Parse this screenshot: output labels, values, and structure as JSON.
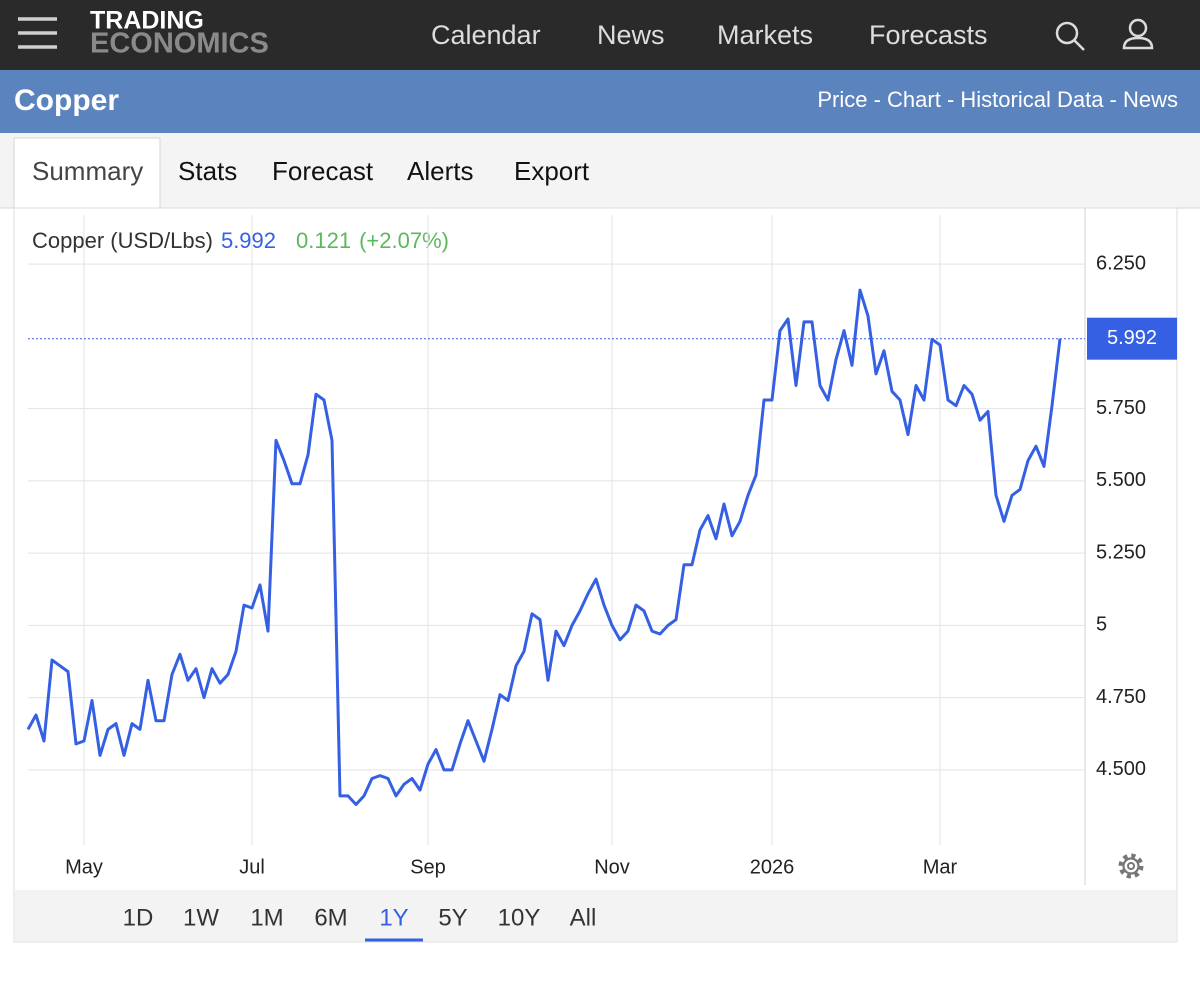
{
  "header": {
    "logo_top": "TRADING",
    "logo_bottom": "ECONOMICS",
    "nav": [
      "Calendar",
      "News",
      "Markets",
      "Forecasts"
    ]
  },
  "title_bar": {
    "title": "Copper",
    "links": "Price - Chart - Historical Data - News"
  },
  "tabs": {
    "items": [
      "Summary",
      "Stats",
      "Forecast",
      "Alerts",
      "Export"
    ],
    "selected": "Summary"
  },
  "legend": {
    "name": "Copper (USD/Lbs)",
    "change": "0.121",
    "change_pct": "(+2.07%)"
  },
  "ranges": {
    "items": [
      "1D",
      "1W",
      "1M",
      "6M",
      "1Y",
      "5Y",
      "10Y",
      "All"
    ],
    "selected": "1Y"
  },
  "chart_data": {
    "type": "line",
    "categories": [
      null,
      null,
      null,
      null,
      null,
      null,
      null,
      "May",
      null,
      null,
      null,
      null,
      null,
      null,
      null,
      null,
      null,
      null,
      null,
      null,
      null,
      null,
      null,
      null,
      null,
      null,
      null,
      null,
      "Jul",
      null,
      null,
      null,
      null,
      null,
      null,
      null,
      null,
      null,
      null,
      null,
      null,
      null,
      null,
      null,
      null,
      null,
      null,
      null,
      null,
      null,
      "Sep",
      null,
      null,
      null,
      null,
      null,
      null,
      null,
      null,
      null,
      null,
      null,
      null,
      null,
      null,
      null,
      null,
      null,
      null,
      null,
      null,
      null,
      null,
      "Nov",
      null,
      null,
      null,
      null,
      null,
      null,
      null,
      null,
      null,
      null,
      null,
      null,
      null,
      null,
      null,
      null,
      null,
      null,
      null,
      "2026",
      null,
      null,
      null,
      null,
      null,
      null,
      null,
      null,
      null,
      null,
      null,
      null,
      null,
      null,
      null,
      null,
      null,
      null,
      null,
      null,
      "Mar",
      null,
      null,
      null,
      null,
      null,
      null,
      null,
      null,
      null,
      null,
      null,
      null,
      null,
      null,
      null
    ],
    "series": [
      {
        "name": "Copper",
        "color": "#3560e3",
        "values": [
          4.64,
          4.69,
          4.6,
          4.88,
          4.86,
          4.84,
          4.59,
          4.6,
          4.74,
          4.55,
          4.64,
          4.66,
          4.55,
          4.66,
          4.64,
          4.81,
          4.67,
          4.67,
          4.83,
          4.9,
          4.81,
          4.85,
          4.75,
          4.85,
          4.8,
          4.83,
          4.91,
          5.07,
          5.06,
          5.14,
          4.98,
          5.64,
          5.57,
          5.49,
          5.49,
          5.59,
          5.8,
          5.78,
          5.64,
          4.41,
          4.41,
          4.38,
          4.41,
          4.47,
          4.48,
          4.47,
          4.41,
          4.45,
          4.47,
          4.43,
          4.52,
          4.57,
          4.5,
          4.5,
          4.59,
          4.67,
          4.6,
          4.53,
          4.64,
          4.76,
          4.74,
          4.86,
          4.91,
          5.04,
          5.02,
          4.81,
          4.98,
          4.93,
          5.0,
          5.05,
          5.11,
          5.16,
          5.07,
          5.0,
          4.95,
          4.98,
          5.07,
          5.05,
          4.98,
          4.97,
          5.0,
          5.02,
          5.21,
          5.21,
          5.33,
          5.38,
          5.3,
          5.42,
          5.31,
          5.36,
          5.45,
          5.52,
          5.78,
          5.78,
          6.02,
          6.06,
          5.83,
          6.05,
          6.05,
          5.83,
          5.78,
          5.92,
          6.02,
          5.9,
          6.16,
          6.07,
          5.87,
          5.95,
          5.81,
          5.78,
          5.66,
          5.83,
          5.78,
          5.99,
          5.97,
          5.78,
          5.76,
          5.83,
          5.8,
          5.71,
          5.74,
          5.45,
          5.36,
          5.45,
          5.47,
          5.57,
          5.62,
          5.55,
          5.76,
          5.992
        ]
      }
    ],
    "ylim": [
      4.24,
      6.42
    ],
    "yticks": [
      {
        "value": 4.5,
        "label": "4.500"
      },
      {
        "value": 4.75,
        "label": "4.750"
      },
      5,
      {
        "value": 5.25,
        "label": "5.250"
      },
      {
        "value": 5.5,
        "label": "5.500"
      },
      {
        "value": 5.75,
        "label": "5.750"
      },
      {
        "value": 6.25,
        "label": "6.250"
      }
    ],
    "grid": true
  }
}
